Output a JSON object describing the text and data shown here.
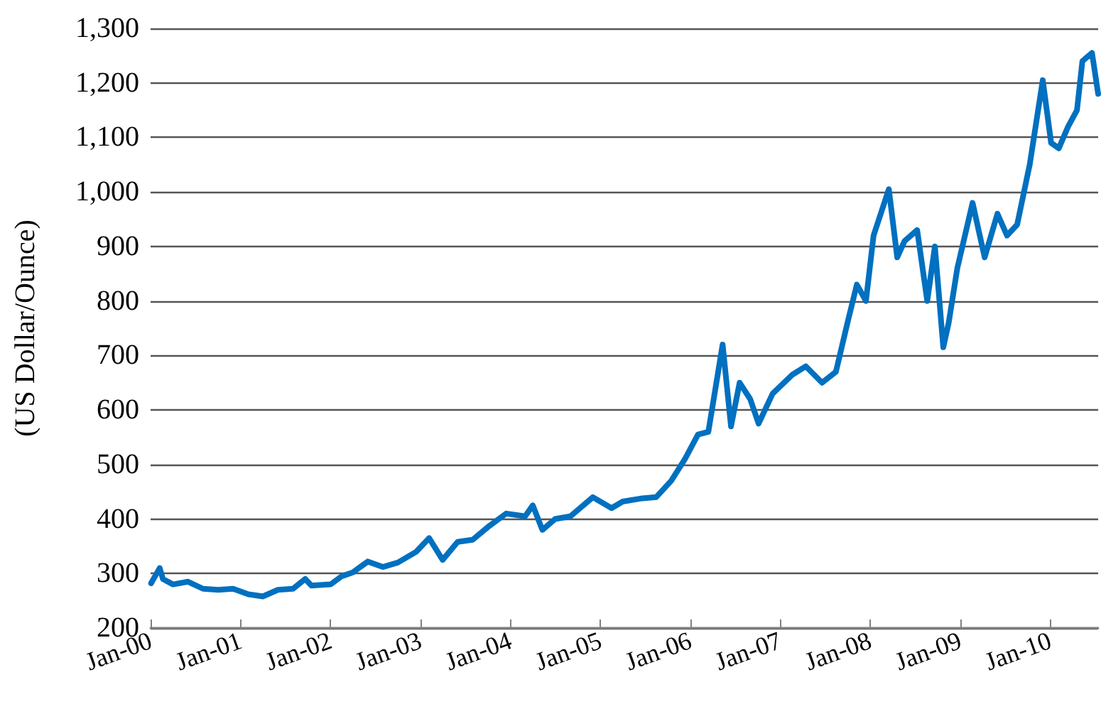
{
  "chart_data": {
    "type": "line",
    "ylabel": "(US Dollar/Ounce)",
    "xlim": [
      "2000-01-01",
      "2010-07-15"
    ],
    "xticks": [
      {
        "value": "2000-01",
        "label": "Jan-00"
      },
      {
        "value": "2001-01",
        "label": "Jan-01"
      },
      {
        "value": "2002-01",
        "label": "Jan-02"
      },
      {
        "value": "2003-01",
        "label": "Jan-03"
      },
      {
        "value": "2004-01",
        "label": "Jan-04"
      },
      {
        "value": "2005-01",
        "label": "Jan-05"
      },
      {
        "value": "2006-01",
        "label": "Jan-06"
      },
      {
        "value": "2007-01",
        "label": "Jan-07"
      },
      {
        "value": "2008-01",
        "label": "Jan-08"
      },
      {
        "value": "2009-01",
        "label": "Jan-09"
      },
      {
        "value": "2010-01",
        "label": "Jan-10"
      }
    ],
    "ylim": [
      200,
      1300
    ],
    "yticks": [
      200,
      300,
      400,
      500,
      600,
      700,
      800,
      900,
      {
        "value": 1000,
        "label": "1,000"
      },
      {
        "value": 1100,
        "label": "1,100"
      },
      {
        "value": 1200,
        "label": "1,200"
      },
      {
        "value": 1300,
        "label": "1,300"
      }
    ],
    "grid": "y",
    "marker": "none",
    "line_style": "solid",
    "series": [
      {
        "color": "#0070c0",
        "x": [
          "2000-01-03",
          "2000-02-07",
          "2000-02-20",
          "2000-04-01",
          "2000-06-01",
          "2000-08-01",
          "2000-10-01",
          "2000-12-01",
          "2001-02-01",
          "2001-04-01",
          "2001-06-01",
          "2001-08-01",
          "2001-09-20",
          "2001-10-15",
          "2002-01-01",
          "2002-02-15",
          "2002-04-01",
          "2002-06-01",
          "2002-08-01",
          "2002-10-01",
          "2002-12-15",
          "2003-02-05",
          "2003-04-01",
          "2003-06-01",
          "2003-08-01",
          "2003-10-01",
          "2003-12-15",
          "2004-03-01",
          "2004-04-01",
          "2004-05-10",
          "2004-07-01",
          "2004-09-01",
          "2004-12-01",
          "2005-02-15",
          "2005-04-01",
          "2005-06-20",
          "2005-08-15",
          "2005-10-15",
          "2005-12-10",
          "2006-02-01",
          "2006-03-15",
          "2006-05-12",
          "2006-06-15",
          "2006-07-20",
          "2006-09-01",
          "2006-10-05",
          "2006-12-01",
          "2007-02-20",
          "2007-04-15",
          "2007-06-20",
          "2007-08-15",
          "2007-10-01",
          "2007-11-08",
          "2007-12-15",
          "2008-01-15",
          "2008-03-17",
          "2008-04-20",
          "2008-05-20",
          "2008-07-10",
          "2008-08-20",
          "2008-09-20",
          "2008-10-24",
          "2008-11-15",
          "2008-12-20",
          "2009-02-20",
          "2009-04-10",
          "2009-06-01",
          "2009-07-10",
          "2009-08-20",
          "2009-10-10",
          "2009-12-02",
          "2010-01-05",
          "2010-02-05",
          "2010-03-15",
          "2010-04-20",
          "2010-05-12",
          "2010-06-20",
          "2010-07-15"
        ],
        "values": [
          282,
          310,
          290,
          280,
          285,
          272,
          270,
          272,
          262,
          258,
          270,
          272,
          290,
          278,
          280,
          295,
          302,
          322,
          312,
          320,
          340,
          365,
          325,
          358,
          362,
          385,
          410,
          405,
          425,
          380,
          400,
          405,
          440,
          420,
          432,
          438,
          440,
          470,
          510,
          555,
          560,
          720,
          570,
          650,
          620,
          575,
          630,
          665,
          680,
          650,
          670,
          760,
          830,
          800,
          920,
          1005,
          880,
          910,
          930,
          800,
          900,
          715,
          760,
          860,
          980,
          880,
          960,
          920,
          940,
          1050,
          1205,
          1090,
          1080,
          1120,
          1150,
          1240,
          1255,
          1180
        ]
      }
    ]
  }
}
